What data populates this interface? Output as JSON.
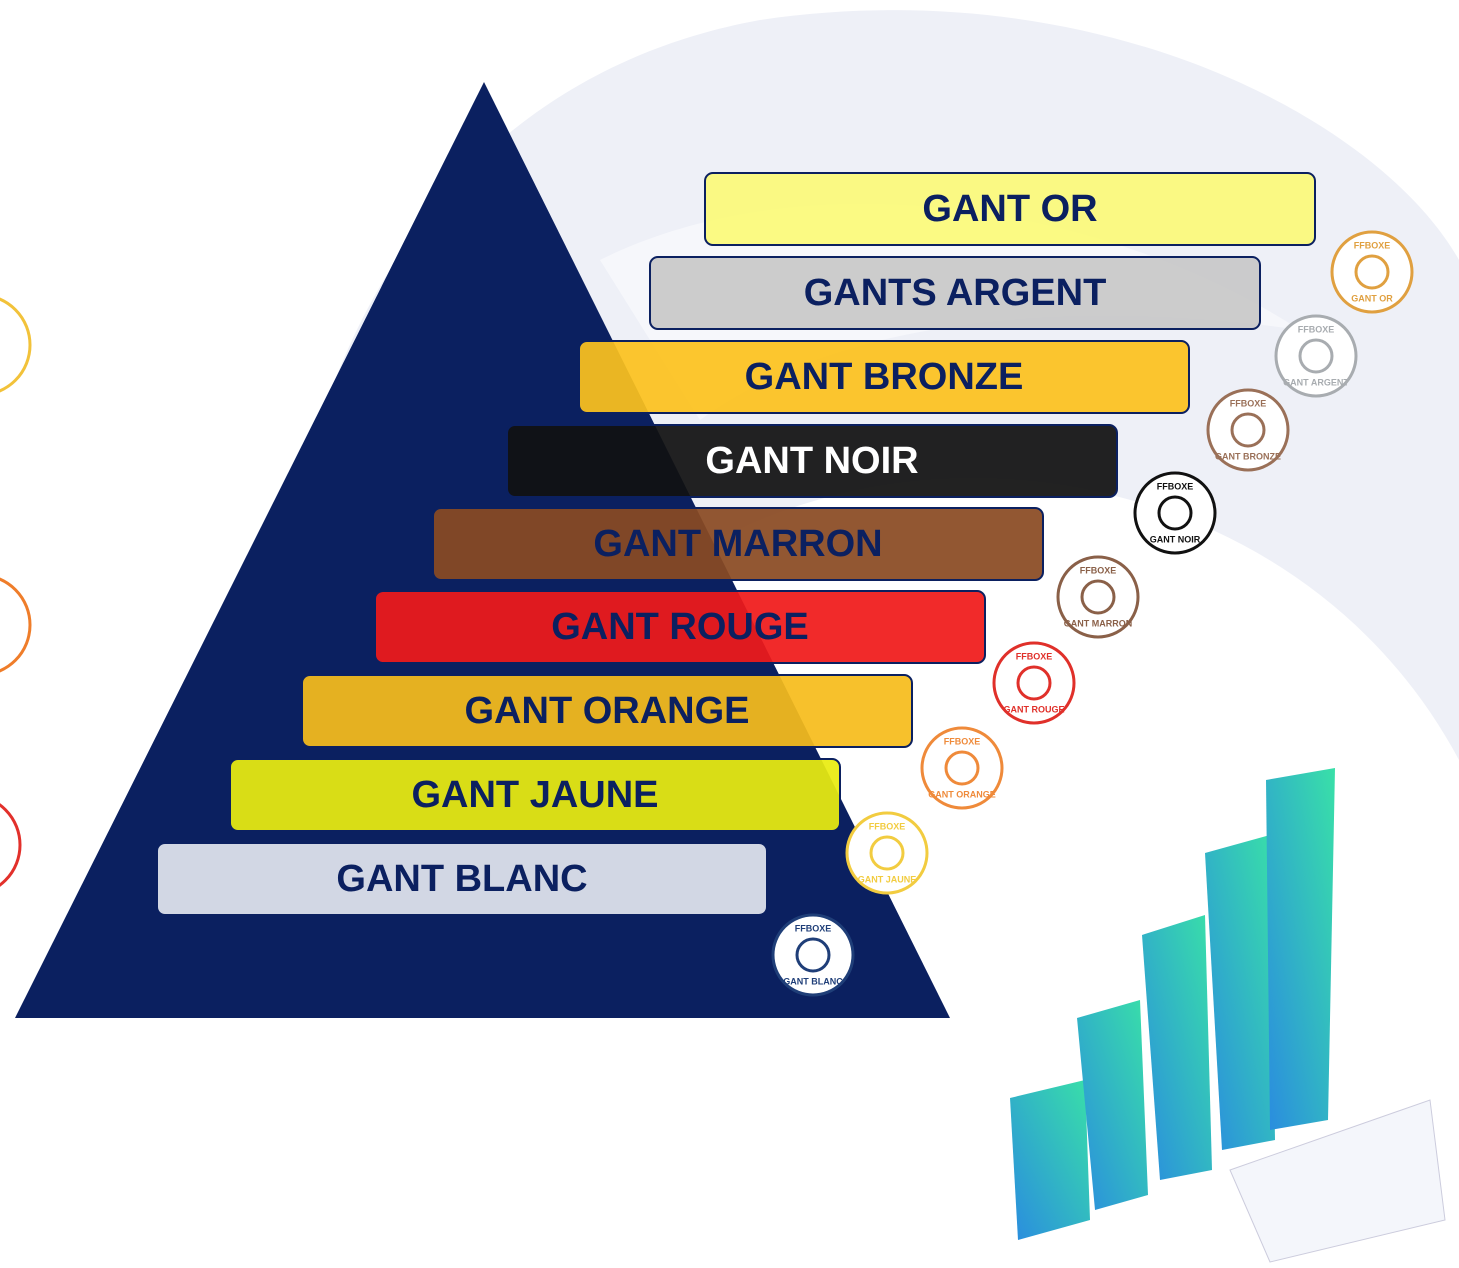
{
  "badge_brand": "FFBOXE",
  "levels": [
    {
      "label": "GANT OR",
      "badge": "GANT OR"
    },
    {
      "label": "GANTS ARGENT",
      "badge": "GANT ARGENT"
    },
    {
      "label": "GANT BRONZE",
      "badge": "GANT BRONZE"
    },
    {
      "label": "GANT NOIR",
      "badge": "GANT NOIR"
    },
    {
      "label": "GANT MARRON",
      "badge": "GANT MARRON"
    },
    {
      "label": "GANT ROUGE",
      "badge": "GANT ROUGE"
    },
    {
      "label": "GANT ORANGE",
      "badge": "GANT ORANGE"
    },
    {
      "label": "GANT JAUNE",
      "badge": "GANT JAUNE"
    },
    {
      "label": "GANT BLANC",
      "badge": "GANT BLANC"
    }
  ]
}
